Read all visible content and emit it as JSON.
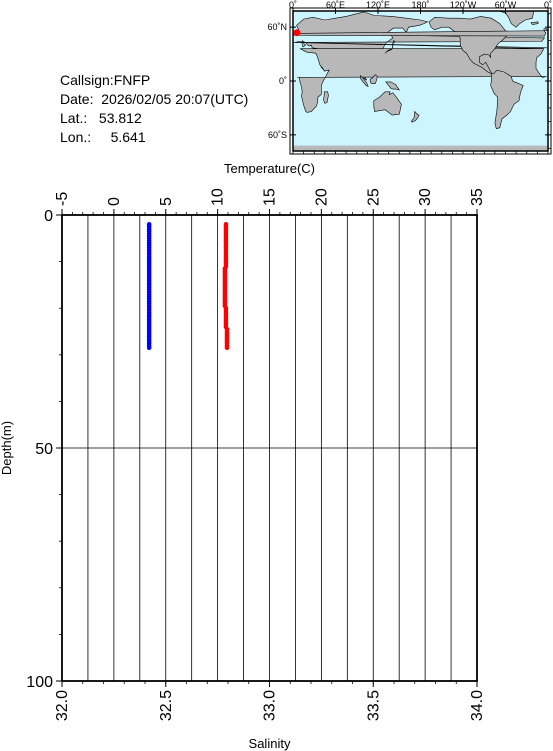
{
  "station": {
    "callsign_label": "Callsign:",
    "callsign": "FNFP",
    "date_label": "Date:",
    "date": "2026/02/05 20:07(UTC)",
    "lat_label": "Lat.:",
    "lat": "53.812",
    "lon_label": "Lon.:",
    "lon": "5.641"
  },
  "map": {
    "top_labels": [
      "0˚",
      "60˚E",
      "120˚E",
      "180˚",
      "120˚W",
      "60˚W",
      "0˚"
    ],
    "left_labels": [
      "60˚N",
      "0˚",
      "60˚S"
    ],
    "ocean_color": "#ccf5ff",
    "land_color": "#b8b8b8",
    "marker_color": "#ff0000",
    "marker_lon": 5.641,
    "marker_lat": 53.812
  },
  "chart_data": {
    "type": "scatter",
    "title": "",
    "xlabel_top": "Temperature(C)",
    "xlabel_bottom": "Salinity",
    "ylabel": "Depth(m)",
    "temperature_ticks": [
      "-5",
      "0",
      "5",
      "10",
      "15",
      "20",
      "25",
      "30",
      "35"
    ],
    "salinity_ticks": [
      "32.0",
      "32.5",
      "33.0",
      "33.5",
      "34.0"
    ],
    "depth_ticks": [
      "0",
      "50",
      "100"
    ],
    "temperature_range": [
      -5,
      35
    ],
    "salinity_range": [
      32.0,
      34.0
    ],
    "depth_range": [
      0,
      100
    ],
    "grid": true,
    "series": [
      {
        "name": "",
        "axis": "temperature",
        "color": "#ff0000",
        "x": [
          10.8,
          10.8,
          10.8,
          10.8,
          10.8,
          10.8,
          10.8,
          10.8,
          10.8,
          10.8,
          10.8,
          10.8,
          10.8,
          10.8,
          10.8,
          10.8,
          10.8,
          10.8,
          10.8,
          10.7,
          10.7,
          10.7,
          10.7,
          10.7,
          10.7,
          10.7,
          10.7,
          10.7,
          10.7,
          10.7,
          10.7,
          10.7,
          10.7,
          10.7,
          10.7,
          10.7,
          10.8,
          10.8,
          10.8,
          10.8,
          10.8,
          10.8,
          10.8,
          10.8,
          10.8,
          10.9,
          10.9,
          10.9,
          10.9,
          10.9,
          10.9,
          10.9,
          10.9,
          10.9
        ],
        "y": [
          2.0,
          2.5,
          3.0,
          3.5,
          4.0,
          4.5,
          5.0,
          5.5,
          6.0,
          6.5,
          7.0,
          7.5,
          8.0,
          8.5,
          9.0,
          9.5,
          10.0,
          10.5,
          11.0,
          11.5,
          12.0,
          12.5,
          13.0,
          13.5,
          14.0,
          14.5,
          15.0,
          15.5,
          16.0,
          16.5,
          17.0,
          17.5,
          18.0,
          18.5,
          19.0,
          19.5,
          20.0,
          20.5,
          21.0,
          21.5,
          22.0,
          22.5,
          23.0,
          23.5,
          24.0,
          24.5,
          25.0,
          25.5,
          26.0,
          26.5,
          27.0,
          27.5,
          28.0,
          28.5
        ]
      },
      {
        "name": "",
        "axis": "salinity",
        "color": "#0000ff",
        "x": [
          32.42,
          32.42,
          32.42,
          32.42,
          32.42,
          32.42,
          32.42,
          32.42,
          32.42,
          32.42,
          32.42,
          32.42,
          32.42,
          32.42,
          32.42,
          32.42,
          32.42,
          32.42,
          32.42,
          32.42,
          32.42,
          32.42,
          32.42,
          32.42,
          32.42,
          32.42,
          32.42,
          32.42,
          32.42,
          32.42,
          32.42,
          32.42,
          32.42,
          32.42,
          32.42,
          32.42,
          32.42,
          32.42,
          32.42,
          32.42,
          32.42,
          32.42,
          32.42,
          32.42,
          32.42,
          32.42,
          32.42,
          32.42,
          32.42,
          32.42,
          32.42,
          32.42,
          32.42,
          32.42
        ],
        "y": [
          2.0,
          2.5,
          3.0,
          3.5,
          4.0,
          4.5,
          5.0,
          5.5,
          6.0,
          6.5,
          7.0,
          7.5,
          8.0,
          8.5,
          9.0,
          9.5,
          10.0,
          10.5,
          11.0,
          11.5,
          12.0,
          12.5,
          13.0,
          13.5,
          14.0,
          14.5,
          15.0,
          15.5,
          16.0,
          16.5,
          17.0,
          17.5,
          18.0,
          18.5,
          19.0,
          19.5,
          20.0,
          20.5,
          21.0,
          21.5,
          22.0,
          22.5,
          23.0,
          23.5,
          24.0,
          24.5,
          25.0,
          25.5,
          26.0,
          26.5,
          27.0,
          27.5,
          28.0,
          28.5
        ]
      }
    ]
  }
}
